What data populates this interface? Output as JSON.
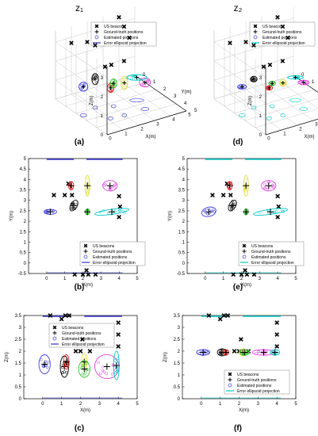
{
  "figure": {
    "columns": [
      {
        "header": "z₁",
        "panels": [
          "a",
          "b",
          "c"
        ]
      },
      {
        "header": "z₂",
        "panels": [
          "d",
          "e",
          "f"
        ]
      }
    ]
  },
  "legend_entries": [
    "US beacons",
    "Ground-truth positions",
    "Estimated positions",
    "Error ellipsoid projection"
  ],
  "colors": {
    "beacon": "#000000",
    "ground_truth": "#000000",
    "estimated_z1": "#3a3ad8",
    "estimated_z2": "#3a3ad8",
    "ellipse_z1": "#3232c8",
    "ellipse_z2": "#00c8c8",
    "cluster": [
      "#4040e0",
      "#000000",
      "#e02020",
      "#e0e040",
      "#30c030",
      "#e040e0",
      "#00c8c8"
    ]
  },
  "chart_data": [
    {
      "panel": "a",
      "label": "(a)",
      "type": "scatter",
      "view": "3d",
      "title": "z₁",
      "xlabel": "X(m)",
      "ylabel": "Y(m)",
      "zlabel": "Z(m)",
      "x_ticks": [
        0,
        1,
        2,
        3,
        4,
        5
      ],
      "y_ticks": [
        0,
        1,
        2,
        3,
        4,
        5
      ],
      "z_ticks": [
        0,
        1,
        2,
        3
      ],
      "grid": true,
      "legend": "top-right",
      "beacons": [
        [
          0.0,
          4.8,
          3.5
        ],
        [
          0.4,
          4.8,
          3.5
        ],
        [
          1.2,
          4.8,
          3.5
        ],
        [
          4.0,
          0.0,
          3.3
        ],
        [
          4.0,
          0.5,
          3.0
        ],
        [
          4.0,
          1.0,
          2.6
        ],
        [
          1.0,
          0.0,
          2.7
        ],
        [
          2.0,
          0.0,
          2.5
        ],
        [
          2.5,
          0.0,
          2.2
        ]
      ],
      "clusters": [
        {
          "truth": [
            0.2,
            2.4,
            1.5
          ],
          "ellipse": [
            0.4,
            0.4
          ]
        },
        {
          "truth": [
            1.2,
            2.0,
            1.5
          ],
          "ellipse": [
            0.3,
            0.5
          ]
        },
        {
          "truth": [
            1.2,
            3.5,
            1.6
          ],
          "ellipse": [
            0.3,
            0.4
          ]
        },
        {
          "truth": [
            2.0,
            3.6,
            1.7
          ],
          "ellipse": [
            0.3,
            0.6
          ]
        },
        {
          "truth": [
            2.1,
            2.4,
            1.2
          ],
          "ellipse": [
            0.3,
            0.4
          ]
        },
        {
          "truth": [
            3.3,
            3.6,
            1.4
          ],
          "ellipse": [
            0.5,
            0.4
          ]
        },
        {
          "truth": [
            3.5,
            2.5,
            1.2
          ],
          "ellipse": [
            0.9,
            0.25
          ]
        }
      ]
    },
    {
      "panel": "d",
      "label": "(d)",
      "type": "scatter",
      "view": "3d",
      "title": "z₂",
      "xlabel": "X(m)",
      "ylabel": "Y(m)",
      "zlabel": "Z(m)",
      "x_ticks": [
        0,
        1,
        2,
        3,
        4
      ],
      "y_ticks": [
        0,
        1,
        2,
        3,
        4,
        5
      ],
      "z_ticks": [
        0,
        1,
        2,
        3
      ],
      "grid": true,
      "legend": "top-right",
      "beacons": [
        [
          0.0,
          4.8,
          3.5
        ],
        [
          0.4,
          4.8,
          3.5
        ],
        [
          1.2,
          4.8,
          3.5
        ],
        [
          4.0,
          0.0,
          3.3
        ],
        [
          4.0,
          0.5,
          3.0
        ],
        [
          4.0,
          1.0,
          2.6
        ],
        [
          1.0,
          0.0,
          2.7
        ],
        [
          2.0,
          0.0,
          2.5
        ],
        [
          2.5,
          0.0,
          2.2
        ]
      ],
      "clusters": [
        {
          "truth": [
            0.2,
            2.4,
            1.5
          ],
          "ellipse": [
            0.4,
            0.2
          ]
        },
        {
          "truth": [
            1.2,
            2.0,
            1.5
          ],
          "ellipse": [
            0.3,
            0.25
          ]
        },
        {
          "truth": [
            1.2,
            3.5,
            1.6
          ],
          "ellipse": [
            0.3,
            0.2
          ]
        },
        {
          "truth": [
            2.0,
            3.6,
            1.7
          ],
          "ellipse": [
            0.3,
            0.3
          ]
        },
        {
          "truth": [
            2.1,
            2.4,
            1.2
          ],
          "ellipse": [
            0.3,
            0.2
          ]
        },
        {
          "truth": [
            3.3,
            3.6,
            1.4
          ],
          "ellipse": [
            0.5,
            0.2
          ]
        },
        {
          "truth": [
            3.5,
            2.5,
            1.2
          ],
          "ellipse": [
            0.7,
            0.15
          ]
        }
      ]
    },
    {
      "panel": "b",
      "label": "(b)",
      "type": "scatter",
      "view": "xy",
      "xlabel": "X(m)",
      "ylabel": "Y(m)",
      "xlim": [
        -1,
        5
      ],
      "ylim": [
        -0.5,
        5
      ],
      "x_ticks": [
        0,
        1,
        2,
        3,
        4,
        5
      ],
      "y_ticks": [
        -0.5,
        0,
        0.5,
        1,
        1.5,
        2,
        2.5,
        3,
        3.5,
        4,
        4.5,
        5
      ],
      "legend": "bottom-right",
      "beacons": [
        [
          0.4,
          3.25
        ],
        [
          1.0,
          3.25
        ],
        [
          1.4,
          3.25
        ],
        [
          1.2,
          3.8
        ],
        [
          4.0,
          3.2
        ],
        [
          4.05,
          2.7
        ],
        [
          4.0,
          2.2
        ],
        [
          2.0,
          -0.55
        ],
        [
          2.3,
          -0.55
        ],
        [
          2.7,
          -0.55
        ],
        [
          1.55,
          -0.55
        ],
        [
          2.2,
          -0.35
        ]
      ],
      "clusters": [
        {
          "truth": [
            0.2,
            2.45
          ],
          "ellipse": [
            0.35,
            0.12,
            0
          ]
        },
        {
          "truth": [
            1.5,
            2.75
          ],
          "ellipse": [
            0.18,
            0.28,
            -30
          ]
        },
        {
          "truth": [
            1.35,
            3.7
          ],
          "ellipse": [
            0.14,
            0.2,
            0
          ]
        },
        {
          "truth": [
            2.25,
            3.7
          ],
          "ellipse": [
            0.13,
            0.5,
            0
          ]
        },
        {
          "truth": [
            2.25,
            2.45
          ],
          "ellipse": [
            0.12,
            0.14,
            0
          ]
        },
        {
          "truth": [
            3.5,
            3.7
          ],
          "ellipse": [
            0.4,
            0.25,
            0
          ]
        },
        {
          "truth": [
            3.6,
            2.45
          ],
          "ellipse": [
            0.95,
            0.12,
            8
          ]
        }
      ]
    },
    {
      "panel": "e",
      "label": "(e)",
      "type": "scatter",
      "view": "xy",
      "xlabel": "X(m)",
      "ylabel": "Y(m)",
      "xlim": [
        -1,
        5
      ],
      "ylim": [
        -0.5,
        5
      ],
      "x_ticks": [
        0,
        1,
        2,
        3,
        4,
        5
      ],
      "y_ticks": [
        -0.5,
        0,
        0.5,
        1,
        1.5,
        2,
        2.5,
        3,
        3.5,
        4,
        4.5,
        5
      ],
      "legend": "bottom-right",
      "beacons": [
        [
          0.4,
          3.25
        ],
        [
          1.0,
          3.25
        ],
        [
          1.4,
          3.25
        ],
        [
          1.2,
          3.8
        ],
        [
          4.0,
          3.2
        ],
        [
          4.05,
          2.7
        ],
        [
          4.0,
          2.2
        ],
        [
          2.0,
          -0.55
        ],
        [
          2.3,
          -0.55
        ],
        [
          2.7,
          -0.55
        ],
        [
          1.55,
          -0.55
        ],
        [
          2.2,
          -0.35
        ]
      ],
      "clusters": [
        {
          "truth": [
            0.2,
            2.45
          ],
          "ellipse": [
            0.4,
            0.22,
            15
          ]
        },
        {
          "truth": [
            1.5,
            2.75
          ],
          "ellipse": [
            0.18,
            0.28,
            -30
          ]
        },
        {
          "truth": [
            1.35,
            3.7
          ],
          "ellipse": [
            0.14,
            0.2,
            0
          ]
        },
        {
          "truth": [
            2.25,
            3.7
          ],
          "ellipse": [
            0.13,
            0.5,
            0
          ]
        },
        {
          "truth": [
            2.25,
            2.45
          ],
          "ellipse": [
            0.12,
            0.14,
            0
          ]
        },
        {
          "truth": [
            3.5,
            3.7
          ],
          "ellipse": [
            0.4,
            0.25,
            0
          ]
        },
        {
          "truth": [
            3.6,
            2.45
          ],
          "ellipse": [
            0.95,
            0.12,
            8
          ]
        }
      ]
    },
    {
      "panel": "c",
      "label": "(c)",
      "type": "scatter",
      "view": "xz",
      "xlabel": "X(m)",
      "ylabel": "Z(m)",
      "xlim": [
        -1,
        5
      ],
      "ylim": [
        0,
        3.5
      ],
      "x_ticks": [
        0,
        1,
        2,
        3,
        4,
        5
      ],
      "y_ticks": [
        0,
        0.5,
        1,
        1.5,
        2,
        2.5,
        3,
        3.5
      ],
      "legend": "top-center",
      "beacons": [
        [
          0.4,
          3.5
        ],
        [
          1.0,
          3.35
        ],
        [
          1.2,
          3.5
        ],
        [
          1.4,
          3.5
        ],
        [
          1.75,
          2.0
        ],
        [
          2.0,
          2.0
        ],
        [
          2.5,
          2.0
        ],
        [
          4.0,
          3.2
        ],
        [
          4.0,
          2.7
        ],
        [
          4.0,
          2.2
        ],
        [
          2.1,
          2.5
        ]
      ],
      "clusters": [
        {
          "truth": [
            0.1,
            1.45
          ],
          "ellipse": [
            0.3,
            0.4,
            0
          ]
        },
        {
          "truth": [
            1.15,
            1.35
          ],
          "ellipse": [
            0.22,
            0.45,
            0
          ]
        },
        {
          "truth": [
            1.25,
            1.55
          ],
          "ellipse": [
            0.15,
            0.3,
            0
          ]
        },
        {
          "truth": [
            2.2,
            1.55
          ],
          "ellipse": [
            0.15,
            0.35,
            0
          ]
        },
        {
          "truth": [
            2.2,
            1.25
          ],
          "ellipse": [
            0.3,
            0.35,
            0
          ]
        },
        {
          "truth": [
            3.4,
            1.35
          ],
          "ellipse": [
            0.65,
            0.5,
            -30
          ]
        },
        {
          "truth": [
            3.9,
            1.4
          ],
          "ellipse": [
            0.15,
            0.6,
            0
          ]
        }
      ]
    },
    {
      "panel": "f",
      "label": "(f)",
      "type": "scatter",
      "view": "xz",
      "xlabel": "X(m)",
      "ylabel": "Z(m)",
      "xlim": [
        -1,
        5
      ],
      "ylim": [
        0,
        3.5
      ],
      "x_ticks": [
        0,
        1,
        2,
        3,
        4,
        5
      ],
      "y_ticks": [
        0,
        0.5,
        1,
        1.5,
        2,
        2.5,
        3,
        3.5
      ],
      "legend": "bottom-center",
      "beacons": [
        [
          0.4,
          3.5
        ],
        [
          1.0,
          3.35
        ],
        [
          1.2,
          3.5
        ],
        [
          1.4,
          3.5
        ],
        [
          1.75,
          2.0
        ],
        [
          2.0,
          2.0
        ],
        [
          2.5,
          2.0
        ],
        [
          4.0,
          3.2
        ],
        [
          4.0,
          2.7
        ],
        [
          4.0,
          2.2
        ],
        [
          2.1,
          2.5
        ]
      ],
      "clusters": [
        {
          "truth": [
            0.1,
            1.95
          ],
          "ellipse": [
            0.35,
            0.12,
            0
          ]
        },
        {
          "truth": [
            1.1,
            1.95
          ],
          "ellipse": [
            0.25,
            0.15,
            0
          ]
        },
        {
          "truth": [
            1.3,
            1.95
          ],
          "ellipse": [
            0.15,
            0.12,
            0
          ]
        },
        {
          "truth": [
            2.2,
            1.95
          ],
          "ellipse": [
            0.2,
            0.15,
            0
          ]
        },
        {
          "truth": [
            2.3,
            1.95
          ],
          "ellipse": [
            0.25,
            0.12,
            0
          ]
        },
        {
          "truth": [
            3.3,
            1.95
          ],
          "ellipse": [
            0.6,
            0.12,
            0
          ]
        },
        {
          "truth": [
            3.9,
            1.95
          ],
          "ellipse": [
            0.25,
            0.12,
            0
          ]
        }
      ]
    }
  ]
}
